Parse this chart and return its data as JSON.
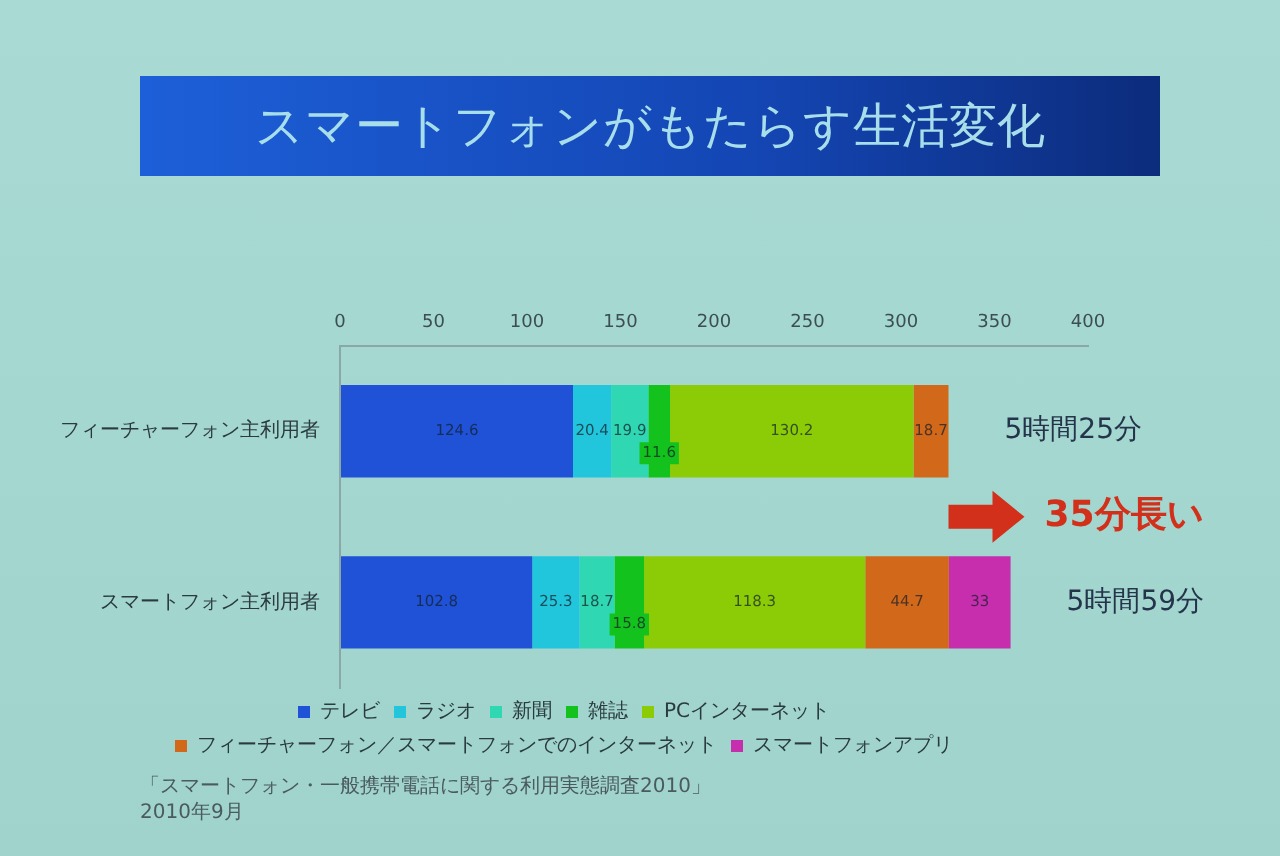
{
  "chart_data": {
    "type": "bar",
    "orientation": "horizontal",
    "stacked": true,
    "title": "スマートフォンがもたらす生活変化",
    "categories": [
      "フィーチャーフォン主利用者",
      "スマートフォン主利用者"
    ],
    "series": [
      {
        "name": "テレビ",
        "color": "#1f52d6",
        "values": [
          124.6,
          102.8
        ]
      },
      {
        "name": "ラジオ",
        "color": "#22c6dc",
        "values": [
          20.4,
          25.3
        ]
      },
      {
        "name": "新聞",
        "color": "#2fd8b2",
        "values": [
          19.9,
          18.7
        ]
      },
      {
        "name": "雑誌",
        "color": "#14c21e",
        "values": [
          11.6,
          15.8
        ]
      },
      {
        "name": "PCインターネット",
        "color": "#8ccc06",
        "values": [
          130.2,
          118.3
        ]
      },
      {
        "name": "フィーチャーフォン／スマートフォンでのインターネット",
        "color": "#d2681a",
        "values": [
          18.7,
          44.7
        ]
      },
      {
        "name": "スマートフォンアプリ",
        "color": "#c62eae",
        "values": [
          null,
          33
        ]
      }
    ],
    "xlim": [
      0,
      400
    ],
    "xticks": [
      0,
      50,
      100,
      150,
      200,
      250,
      300,
      350,
      400
    ],
    "grid": false,
    "legend": "bottom",
    "data_labels": true,
    "totals": [
      "5時間25分",
      "5時間59分"
    ],
    "annotations": [
      "35分長い",
      "「スマートフォン・一般携帯電話に関する利用実態調査2010」",
      "2010年9月"
    ]
  }
}
